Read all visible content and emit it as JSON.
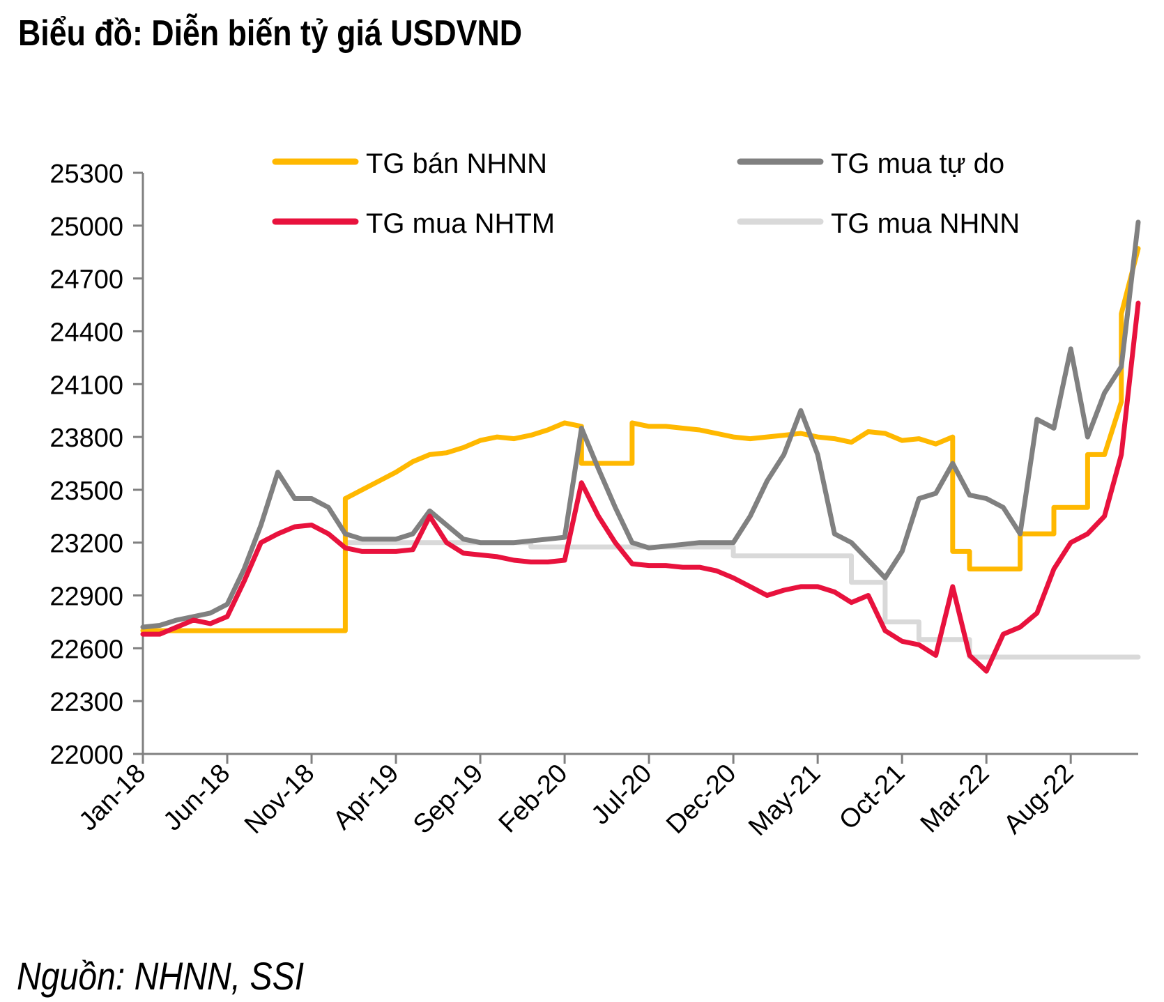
{
  "header": {
    "title": "Biểu đồ: Diễn biến tỷ giá USDVND"
  },
  "footer": {
    "source": "Nguồn: NHNN, SSI"
  },
  "chart_data": {
    "type": "line",
    "title": "Biểu đồ: Diễn biến tỷ giá USDVND",
    "xlabel": "",
    "ylabel": "",
    "ylim": [
      22000,
      25300
    ],
    "yticks": [
      22000,
      22300,
      22600,
      22900,
      23200,
      23500,
      23800,
      24100,
      24400,
      24700,
      25000,
      25300
    ],
    "xlim": [
      "2018-01",
      "2022-12"
    ],
    "xticks": [
      "Jan-18",
      "Jun-18",
      "Nov-18",
      "Apr-19",
      "Sep-19",
      "Feb-20",
      "Jul-20",
      "Dec-20",
      "May-21",
      "Oct-21",
      "Mar-22",
      "Aug-22"
    ],
    "grid": false,
    "legend": "top",
    "series": [
      {
        "name": "TG bán NHNN",
        "color": "#FFB800",
        "points": [
          [
            "2018-01",
            22700
          ],
          [
            "2019-01",
            22700
          ],
          [
            "2019-01",
            23450
          ],
          [
            "2019-02",
            23500
          ],
          [
            "2019-03",
            23550
          ],
          [
            "2019-04",
            23600
          ],
          [
            "2019-05",
            23660
          ],
          [
            "2019-06",
            23700
          ],
          [
            "2019-07",
            23710
          ],
          [
            "2019-08",
            23740
          ],
          [
            "2019-09",
            23780
          ],
          [
            "2019-10",
            23800
          ],
          [
            "2019-11",
            23790
          ],
          [
            "2019-12",
            23810
          ],
          [
            "2020-01",
            23840
          ],
          [
            "2020-02",
            23880
          ],
          [
            "2020-03",
            23860
          ],
          [
            "2020-03",
            23650
          ],
          [
            "2020-06",
            23650
          ],
          [
            "2020-06",
            23880
          ],
          [
            "2020-07",
            23860
          ],
          [
            "2020-08",
            23860
          ],
          [
            "2020-09",
            23850
          ],
          [
            "2020-10",
            23840
          ],
          [
            "2020-11",
            23820
          ],
          [
            "2020-12",
            23800
          ],
          [
            "2021-01",
            23790
          ],
          [
            "2021-02",
            23800
          ],
          [
            "2021-03",
            23810
          ],
          [
            "2021-04",
            23820
          ],
          [
            "2021-05",
            23800
          ],
          [
            "2021-06",
            23790
          ],
          [
            "2021-07",
            23770
          ],
          [
            "2021-08",
            23830
          ],
          [
            "2021-09",
            23820
          ],
          [
            "2021-10",
            23780
          ],
          [
            "2021-11",
            23790
          ],
          [
            "2021-12",
            23760
          ],
          [
            "2022-01",
            23800
          ],
          [
            "2022-01",
            23150
          ],
          [
            "2022-02",
            23150
          ],
          [
            "2022-02",
            23050
          ],
          [
            "2022-05",
            23050
          ],
          [
            "2022-05",
            23250
          ],
          [
            "2022-07",
            23250
          ],
          [
            "2022-07",
            23400
          ],
          [
            "2022-09",
            23400
          ],
          [
            "2022-09",
            23700
          ],
          [
            "2022-10",
            23700
          ],
          [
            "2022-11",
            24000
          ],
          [
            "2022-11",
            24500
          ],
          [
            "2022-12",
            24870
          ]
        ]
      },
      {
        "name": "TG mua tự do",
        "color": "#808080",
        "points": [
          [
            "2018-01",
            22720
          ],
          [
            "2018-02",
            22730
          ],
          [
            "2018-03",
            22760
          ],
          [
            "2018-04",
            22780
          ],
          [
            "2018-05",
            22800
          ],
          [
            "2018-06",
            22850
          ],
          [
            "2018-07",
            23050
          ],
          [
            "2018-08",
            23300
          ],
          [
            "2018-09",
            23600
          ],
          [
            "2018-10",
            23450
          ],
          [
            "2018-11",
            23450
          ],
          [
            "2018-12",
            23400
          ],
          [
            "2019-01",
            23250
          ],
          [
            "2019-02",
            23220
          ],
          [
            "2019-03",
            23220
          ],
          [
            "2019-04",
            23220
          ],
          [
            "2019-05",
            23250
          ],
          [
            "2019-06",
            23380
          ],
          [
            "2019-07",
            23300
          ],
          [
            "2019-08",
            23220
          ],
          [
            "2019-09",
            23200
          ],
          [
            "2019-10",
            23200
          ],
          [
            "2019-11",
            23200
          ],
          [
            "2019-12",
            23210
          ],
          [
            "2020-01",
            23220
          ],
          [
            "2020-02",
            23230
          ],
          [
            "2020-03",
            23850
          ],
          [
            "2020-04",
            23620
          ],
          [
            "2020-05",
            23400
          ],
          [
            "2020-06",
            23200
          ],
          [
            "2020-07",
            23170
          ],
          [
            "2020-08",
            23180
          ],
          [
            "2020-09",
            23190
          ],
          [
            "2020-10",
            23200
          ],
          [
            "2020-11",
            23200
          ],
          [
            "2020-12",
            23200
          ],
          [
            "2021-01",
            23350
          ],
          [
            "2021-02",
            23550
          ],
          [
            "2021-03",
            23700
          ],
          [
            "2021-04",
            23950
          ],
          [
            "2021-05",
            23700
          ],
          [
            "2021-06",
            23250
          ],
          [
            "2021-07",
            23200
          ],
          [
            "2021-08",
            23100
          ],
          [
            "2021-09",
            23000
          ],
          [
            "2021-10",
            23150
          ],
          [
            "2021-11",
            23450
          ],
          [
            "2021-12",
            23480
          ],
          [
            "2022-01",
            23650
          ],
          [
            "2022-02",
            23470
          ],
          [
            "2022-03",
            23450
          ],
          [
            "2022-04",
            23400
          ],
          [
            "2022-05",
            23250
          ],
          [
            "2022-06",
            23900
          ],
          [
            "2022-07",
            23850
          ],
          [
            "2022-08",
            24300
          ],
          [
            "2022-09",
            23800
          ],
          [
            "2022-10",
            24050
          ],
          [
            "2022-11",
            24200
          ],
          [
            "2022-12",
            25020
          ]
        ]
      },
      {
        "name": "TG mua NHTM",
        "color": "#E8123D",
        "points": [
          [
            "2018-01",
            22680
          ],
          [
            "2018-02",
            22680
          ],
          [
            "2018-03",
            22720
          ],
          [
            "2018-04",
            22760
          ],
          [
            "2018-05",
            22740
          ],
          [
            "2018-06",
            22780
          ],
          [
            "2018-07",
            22980
          ],
          [
            "2018-08",
            23200
          ],
          [
            "2018-09",
            23250
          ],
          [
            "2018-10",
            23290
          ],
          [
            "2018-11",
            23300
          ],
          [
            "2018-12",
            23250
          ],
          [
            "2019-01",
            23170
          ],
          [
            "2019-02",
            23150
          ],
          [
            "2019-03",
            23150
          ],
          [
            "2019-04",
            23150
          ],
          [
            "2019-05",
            23160
          ],
          [
            "2019-06",
            23350
          ],
          [
            "2019-07",
            23200
          ],
          [
            "2019-08",
            23140
          ],
          [
            "2019-09",
            23130
          ],
          [
            "2019-10",
            23120
          ],
          [
            "2019-11",
            23100
          ],
          [
            "2019-12",
            23090
          ],
          [
            "2020-01",
            23090
          ],
          [
            "2020-02",
            23100
          ],
          [
            "2020-03",
            23540
          ],
          [
            "2020-04",
            23350
          ],
          [
            "2020-05",
            23200
          ],
          [
            "2020-06",
            23080
          ],
          [
            "2020-07",
            23070
          ],
          [
            "2020-08",
            23070
          ],
          [
            "2020-09",
            23060
          ],
          [
            "2020-10",
            23060
          ],
          [
            "2020-11",
            23040
          ],
          [
            "2020-12",
            23000
          ],
          [
            "2021-01",
            22950
          ],
          [
            "2021-02",
            22900
          ],
          [
            "2021-03",
            22930
          ],
          [
            "2021-04",
            22950
          ],
          [
            "2021-05",
            22950
          ],
          [
            "2021-06",
            22920
          ],
          [
            "2021-07",
            22860
          ],
          [
            "2021-08",
            22900
          ],
          [
            "2021-09",
            22700
          ],
          [
            "2021-10",
            22640
          ],
          [
            "2021-11",
            22620
          ],
          [
            "2021-12",
            22560
          ],
          [
            "2022-01",
            22950
          ],
          [
            "2022-02",
            22560
          ],
          [
            "2022-03",
            22470
          ],
          [
            "2022-04",
            22680
          ],
          [
            "2022-05",
            22720
          ],
          [
            "2022-06",
            22800
          ],
          [
            "2022-07",
            23050
          ],
          [
            "2022-08",
            23200
          ],
          [
            "2022-09",
            23250
          ],
          [
            "2022-10",
            23350
          ],
          [
            "2022-11",
            23700
          ],
          [
            "2022-12",
            24560
          ]
        ]
      },
      {
        "name": "TG mua NHNN",
        "color": "#D9D9D9",
        "points": [
          [
            "2019-01",
            23200
          ],
          [
            "2019-12",
            23200
          ],
          [
            "2019-12",
            23175
          ],
          [
            "2020-12",
            23175
          ],
          [
            "2020-12",
            23125
          ],
          [
            "2021-07",
            23125
          ],
          [
            "2021-07",
            22975
          ],
          [
            "2021-09",
            22975
          ],
          [
            "2021-09",
            22750
          ],
          [
            "2021-11",
            22750
          ],
          [
            "2021-11",
            22650
          ],
          [
            "2022-02",
            22650
          ],
          [
            "2022-02",
            22550
          ],
          [
            "2022-12",
            22550
          ]
        ]
      }
    ]
  }
}
